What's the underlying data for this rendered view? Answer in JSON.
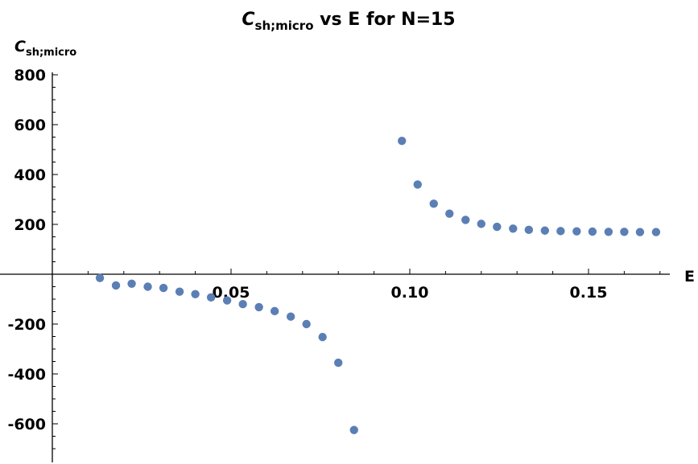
{
  "chart_data": {
    "type": "scatter",
    "title": {
      "main": "C",
      "sub": "sh;micro",
      "rest": " vs E for N=15"
    },
    "ylabel": {
      "main": "C",
      "sub": "sh;micro"
    },
    "xlabel": "E",
    "xlim": [
      0.0,
      0.17
    ],
    "ylim": [
      -750,
      800
    ],
    "x_ticks": [
      {
        "value": 0.05,
        "label": "0.05"
      },
      {
        "value": 0.1,
        "label": "0.10"
      },
      {
        "value": 0.15,
        "label": "0.15"
      }
    ],
    "y_ticks": [
      {
        "value": 800,
        "label": "800"
      },
      {
        "value": 600,
        "label": "600"
      },
      {
        "value": 400,
        "label": "400"
      },
      {
        "value": 200,
        "label": "200"
      },
      {
        "value": -200,
        "label": "-200"
      },
      {
        "value": -400,
        "label": "-400"
      },
      {
        "value": -600,
        "label": "-600"
      }
    ],
    "grid": false,
    "point_color": "#5b7fb5",
    "points": [
      [
        0.0133,
        -15
      ],
      [
        0.0178,
        -45
      ],
      [
        0.0222,
        -38
      ],
      [
        0.0267,
        -50
      ],
      [
        0.0311,
        -55
      ],
      [
        0.0356,
        -70
      ],
      [
        0.04,
        -80
      ],
      [
        0.0444,
        -93
      ],
      [
        0.0489,
        -105
      ],
      [
        0.0533,
        -120
      ],
      [
        0.0578,
        -132
      ],
      [
        0.0622,
        -148
      ],
      [
        0.0667,
        -170
      ],
      [
        0.0711,
        -200
      ],
      [
        0.0756,
        -252
      ],
      [
        0.08,
        -355
      ],
      [
        0.0844,
        -625
      ],
      [
        0.0978,
        535
      ],
      [
        0.1022,
        360
      ],
      [
        0.1067,
        283
      ],
      [
        0.1111,
        243
      ],
      [
        0.1156,
        218
      ],
      [
        0.12,
        202
      ],
      [
        0.1244,
        190
      ],
      [
        0.1289,
        183
      ],
      [
        0.1333,
        178
      ],
      [
        0.1378,
        175
      ],
      [
        0.1422,
        173
      ],
      [
        0.1467,
        172
      ],
      [
        0.1511,
        171
      ],
      [
        0.1556,
        170
      ],
      [
        0.16,
        170
      ],
      [
        0.1644,
        169
      ],
      [
        0.1689,
        169
      ]
    ]
  }
}
